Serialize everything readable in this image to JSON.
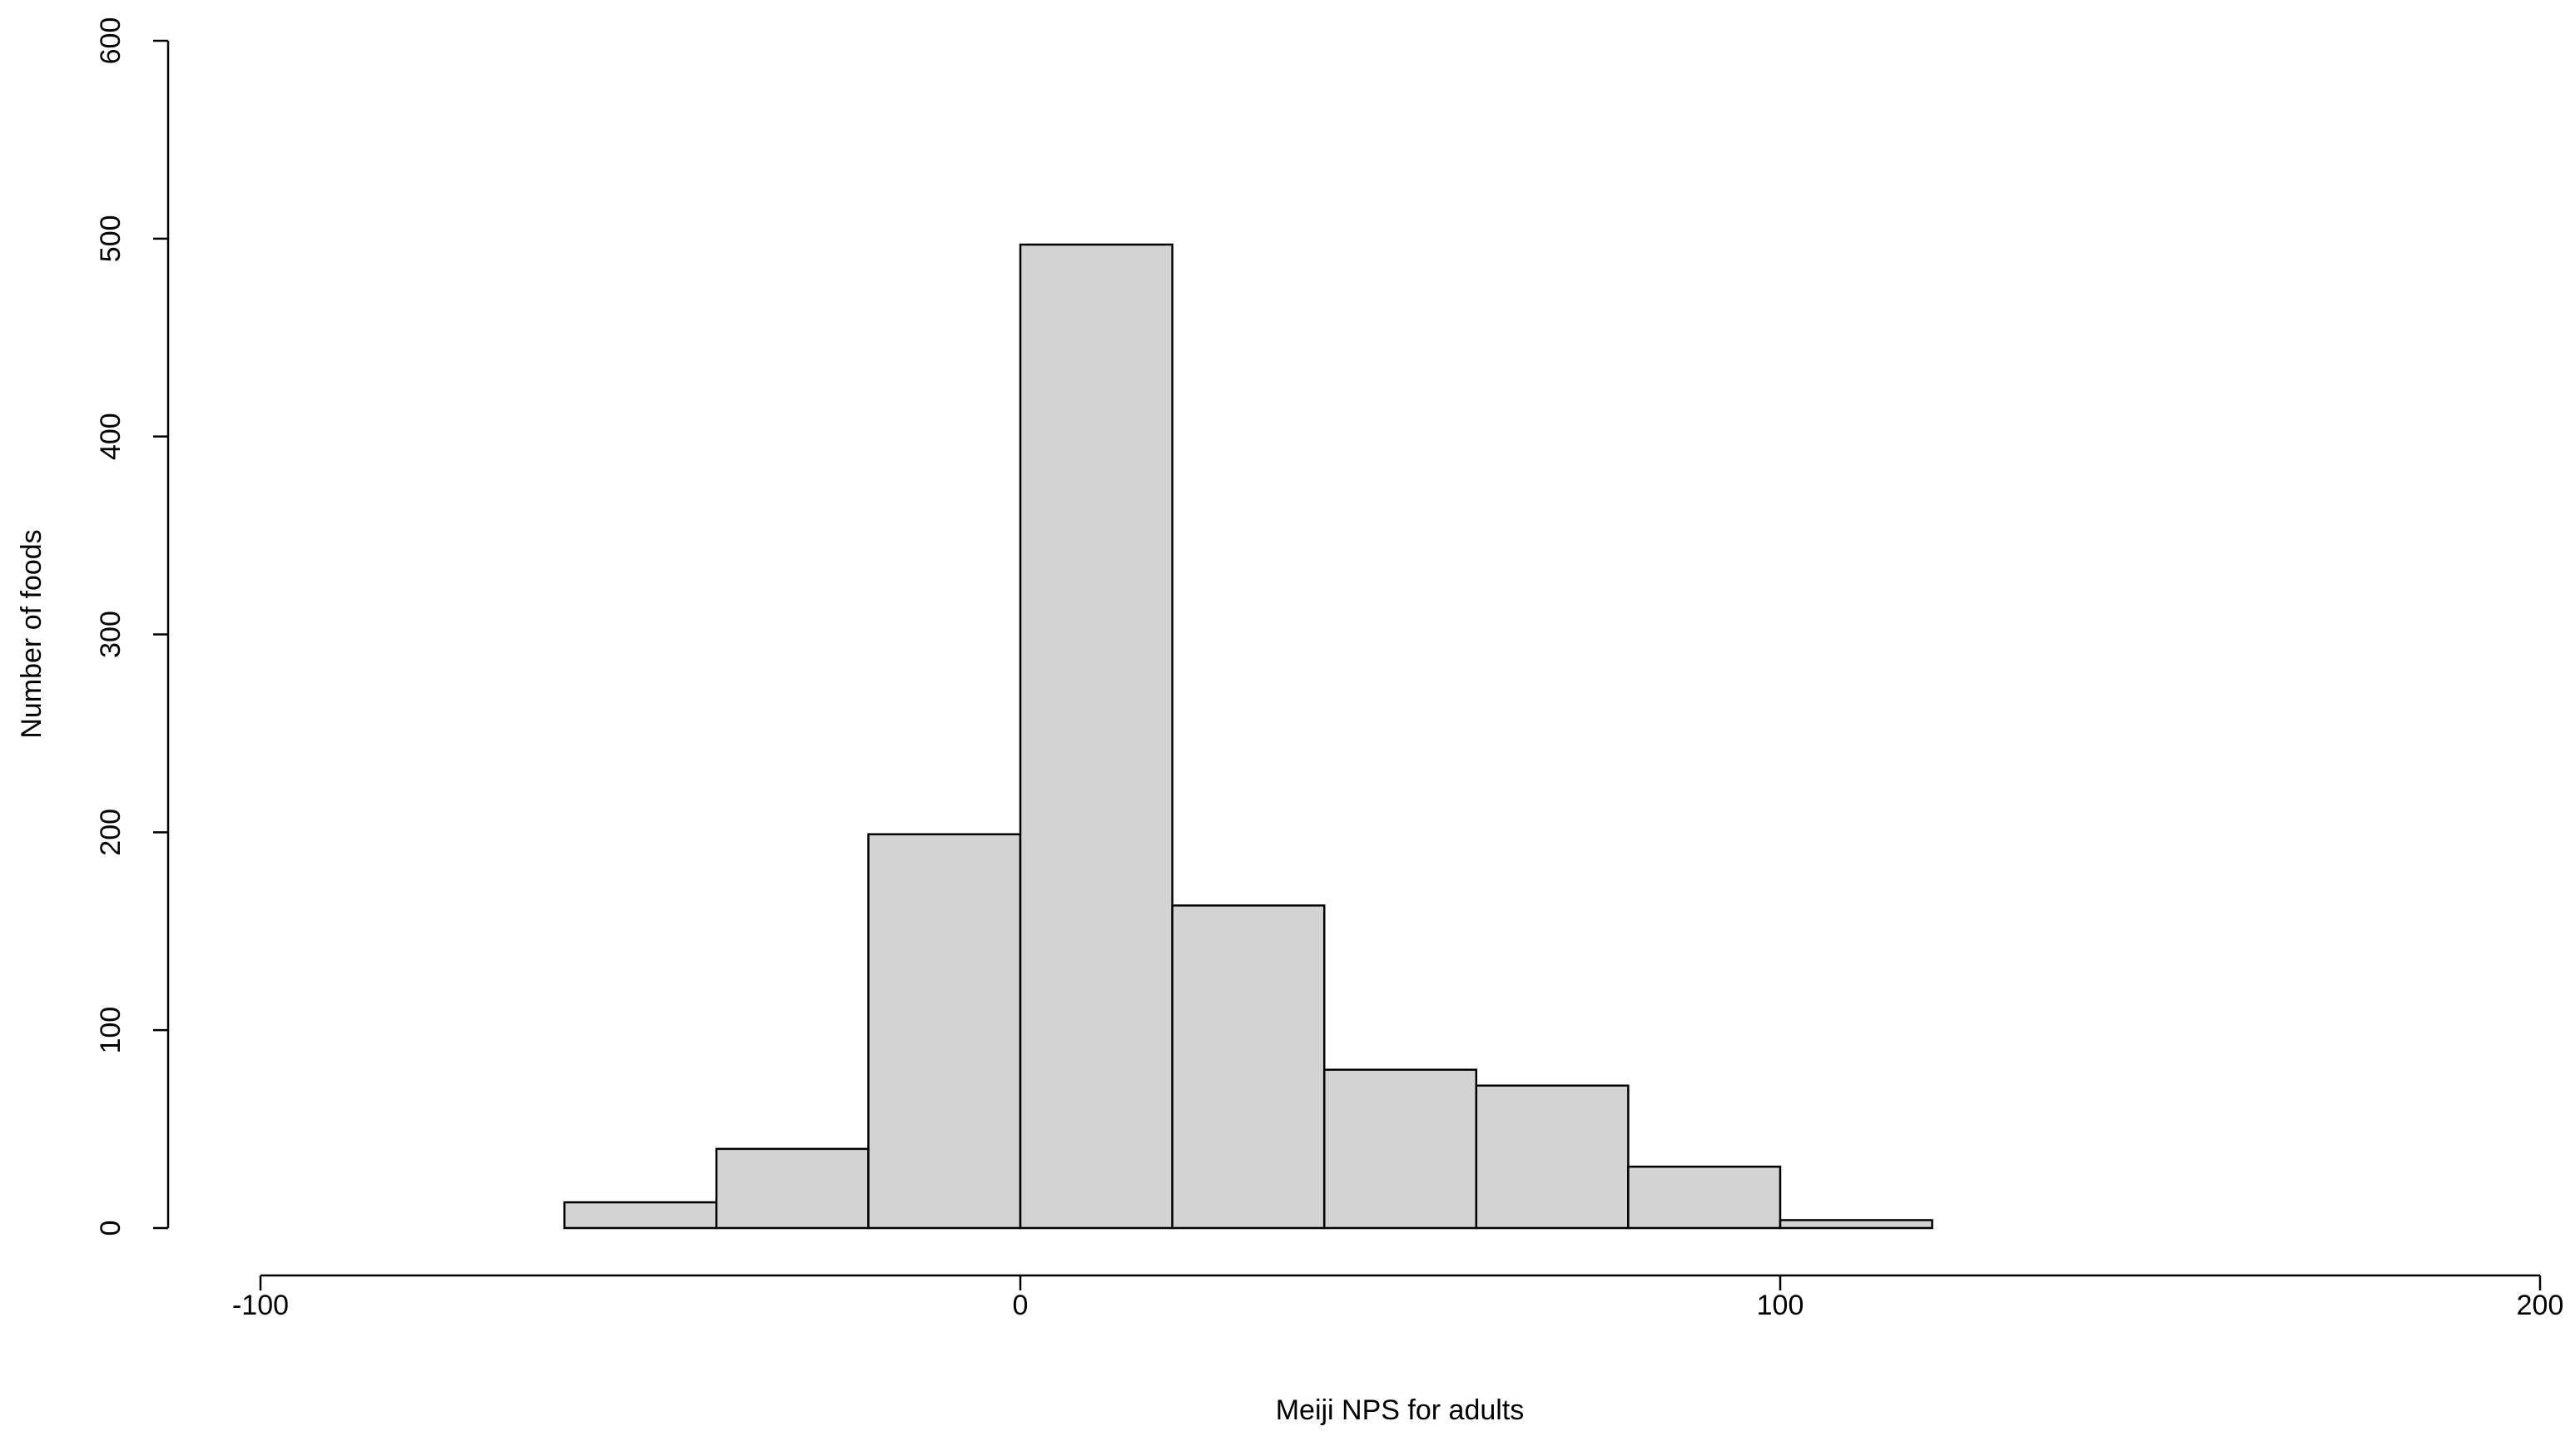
{
  "chart_data": {
    "type": "histogram",
    "x_label": "Meiji NPS for adults",
    "y_label": "Number of foods",
    "bins": [
      -60,
      -40,
      -20,
      0,
      20,
      40,
      60,
      80,
      100,
      120
    ],
    "values": [
      13,
      40,
      199,
      497,
      163,
      80,
      72,
      31,
      4
    ],
    "color": "#d3d3d3",
    "xlim": [
      -100,
      200
    ],
    "xticks": [
      -100,
      0,
      100,
      200
    ],
    "ylim": [
      0,
      600
    ],
    "yticks": [
      0,
      100,
      200,
      300,
      400,
      500,
      600
    ]
  }
}
